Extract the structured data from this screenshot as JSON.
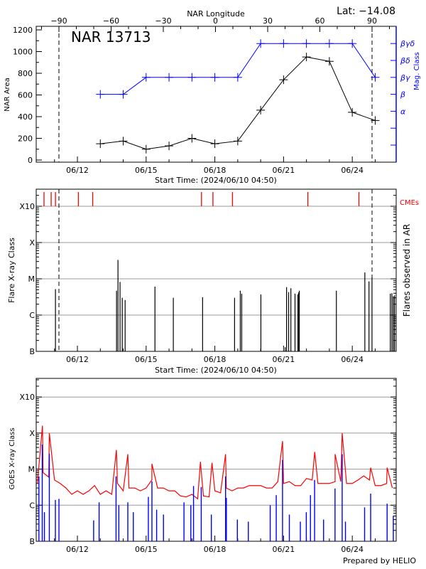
{
  "header": {
    "lat_label": "Lat: −14.08",
    "region_label": "NAR 13713"
  },
  "footer": {
    "credit": "Prepared by HELIO"
  },
  "colors": {
    "area": "#000000",
    "mag_class": "#0000ff",
    "cme": "#ff0000",
    "flare": "#000000",
    "goes_long": "#ff0000",
    "goes_short": "#0000ff",
    "grid": "#999999"
  },
  "chart_data": [
    {
      "type": "line",
      "xlabel": "Start Time: (2024/06/10 04:50)",
      "top_xlabel": "NAR Longitude",
      "ylabel": "NAR Area",
      "y2label": "Mag. Class",
      "xlim": [
        "2024-06-10T04:50",
        "2024-06-25T22:00"
      ],
      "ylim": [
        0,
        1200
      ],
      "yticks": [
        0,
        200,
        400,
        600,
        800,
        1000,
        1200
      ],
      "xtick_labels": [
        "06/12",
        "06/15",
        "06/18",
        "06/21",
        "06/24"
      ],
      "longitude_ticks": [
        -90,
        -60,
        -30,
        0,
        30,
        60,
        90
      ],
      "limb_longitudes": [
        -90,
        90
      ],
      "mag_class_axis": [
        "",
        "",
        "α",
        "β",
        "βγ",
        "βδ",
        "βγδ"
      ],
      "dates": [
        "2024-06-13",
        "2024-06-14",
        "2024-06-15",
        "2024-06-16",
        "2024-06-17",
        "2024-06-18",
        "2024-06-19",
        "2024-06-20",
        "2024-06-21",
        "2024-06-22",
        "2024-06-23",
        "2024-06-24",
        "2024-06-25"
      ],
      "area": [
        150,
        175,
        100,
        130,
        200,
        150,
        175,
        460,
        740,
        950,
        910,
        440,
        365
      ],
      "mag_class": [
        "β",
        "β",
        "βγ",
        "βγ",
        "βγ",
        "βγ",
        "βγ",
        "βγδ",
        "βγδ",
        "βγδ",
        "βγδ",
        "βγδ",
        "βγ"
      ]
    },
    {
      "type": "bar",
      "xlabel": "Start Time: (2024/06/10 04:50)",
      "ylabel": "Flare X-ray Class",
      "y2label": "Flares observed in AR",
      "cme_label": "CMEs",
      "yscale": "log",
      "yticks": [
        "B",
        "C",
        "M",
        "X",
        "X10"
      ],
      "grid": true,
      "cmes": [
        "2024-06-10T13:00",
        "2024-06-10T20:30",
        "2024-06-11T01:00",
        "2024-06-12T01:00",
        "2024-06-12T16:00",
        "2024-06-17T10:00",
        "2024-06-17T22:00",
        "2024-06-18T18:30",
        "2024-06-22T01:30",
        "2024-06-24T07:00"
      ],
      "flares": [
        [
          "2024-06-11T01:00",
          "C5.2"
        ],
        [
          "2024-06-13T17:00",
          "C4.7"
        ],
        [
          "2024-06-13T18:30",
          "M3.3"
        ],
        [
          "2024-06-13T20:40",
          "C8.2"
        ],
        [
          "2024-06-13T23:00",
          "C3.0"
        ],
        [
          "2024-06-14T02:00",
          "C2.6"
        ],
        [
          "2024-06-15T09:15",
          "C6.1"
        ],
        [
          "2024-06-16T04:30",
          "C3.0"
        ],
        [
          "2024-06-17T11:10",
          "C3.1"
        ],
        [
          "2024-06-18T20:40",
          "C3.0"
        ],
        [
          "2024-06-19T02:40",
          "C4.7"
        ],
        [
          "2024-06-19T04:10",
          "C3.9"
        ],
        [
          "2024-06-20T00:15",
          "C3.7"
        ],
        [
          "2024-06-21T01:40",
          "B1.3"
        ],
        [
          "2024-06-21T03:10",
          "C5.9"
        ],
        [
          "2024-06-21T05:20",
          "C4.3"
        ],
        [
          "2024-06-21T07:40",
          "C5.5"
        ],
        [
          "2024-06-21T12:00",
          "C3.9"
        ],
        [
          "2024-06-21T15:00",
          "C3.7"
        ],
        [
          "2024-06-21T15:50",
          "C4.2"
        ],
        [
          "2024-06-21T16:30",
          "C4.7"
        ],
        [
          "2024-06-23T07:20",
          "C4.7"
        ],
        [
          "2024-06-24T13:10",
          "M1.5"
        ],
        [
          "2024-06-24T17:30",
          "C8.5"
        ],
        [
          "2024-06-24T20:40",
          "M1.1"
        ],
        [
          "2024-06-25T15:50",
          "C3.9"
        ],
        [
          "2024-06-25T17:30",
          "C4.0"
        ],
        [
          "2024-06-25T19:00",
          "C3.3"
        ],
        [
          "2024-06-25T20:20",
          "C3.5"
        ]
      ]
    },
    {
      "type": "line",
      "ylabel": "GOES X-ray Class",
      "yscale": "log",
      "yticks": [
        "B",
        "C",
        "M",
        "X",
        "X10"
      ],
      "grid": true,
      "long_channel_start": "2024-06-10T06:00",
      "long_channel_step_hours": 6,
      "long_channel": [
        "C4",
        "C8",
        "C6",
        "C5",
        "C4",
        "C3",
        "C2",
        "C2.5",
        "C2",
        "C2.5",
        "C3.5",
        "C2",
        "C2.5",
        "C2",
        "C4",
        "C2.5",
        "C3",
        "C3",
        "C2.5",
        "C3",
        "C5",
        "C3",
        "C3",
        "C2.5",
        "C2.5",
        "C1.8",
        "C1.7",
        "C2",
        "C1.5",
        "C1.8",
        "C1.7",
        "C2.5",
        "C2.2",
        "C3",
        "C2.5",
        "C3",
        "C3",
        "C3.5",
        "C3.5",
        "C3.5",
        "C3",
        "C3",
        "C4.5",
        "C4",
        "C4.5",
        "C3.5",
        "C3.5",
        "C5.5",
        "C5",
        "C4",
        "C4",
        "C4",
        "C4.5",
        "C4.5",
        "C4",
        "C4",
        "C5",
        "C6.5",
        "C5",
        "C3.5",
        "C3.5",
        "C4",
        "C3"
      ],
      "long_channel_peaks": [
        [
          "2024-06-10T11:25",
          "X1.6"
        ],
        [
          "2024-06-10T18:35",
          "X1.0"
        ],
        [
          "2024-06-13T16:50",
          "M3.4"
        ],
        [
          "2024-06-14T04:50",
          "M2.6"
        ],
        [
          "2024-06-15T06:05",
          "M1.4"
        ],
        [
          "2024-06-17T08:55",
          "M1.6"
        ],
        [
          "2024-06-17T21:00",
          "M1.5"
        ],
        [
          "2024-06-18T11:15",
          "M2.6"
        ],
        [
          "2024-06-20T22:55",
          "M6.0"
        ],
        [
          "2024-06-22T08:40",
          "M3.0"
        ],
        [
          "2024-06-23T06:00",
          "M2.6"
        ],
        [
          "2024-06-23T13:25",
          "X1.0"
        ],
        [
          "2024-06-24T19:15",
          "M1.1"
        ],
        [
          "2024-06-25T12:30",
          "M1.1"
        ]
      ],
      "short_channel_peaks": [
        [
          "2024-06-10T07:40",
          "C6.3"
        ],
        [
          "2024-06-10T11:10",
          "M4.8"
        ],
        [
          "2024-06-10T13:25",
          "B6.4"
        ],
        [
          "2024-06-10T18:35",
          "M2.7"
        ],
        [
          "2024-06-11T00:55",
          "C1.4"
        ],
        [
          "2024-06-11T04:40",
          "C1.5"
        ],
        [
          "2024-06-12T17:00",
          "B3.8"
        ],
        [
          "2024-06-12T22:45",
          "C1.2"
        ],
        [
          "2024-06-13T16:30",
          "C6.3"
        ],
        [
          "2024-06-13T19:25",
          "C1.0"
        ],
        [
          "2024-06-14T04:50",
          "C1.2"
        ],
        [
          "2024-06-14T10:35",
          "B6.4"
        ],
        [
          "2024-06-15T02:20",
          "C1.7"
        ],
        [
          "2024-06-15T06:05",
          "C4.6"
        ],
        [
          "2024-06-15T11:00",
          "B7.5"
        ],
        [
          "2024-06-15T18:10",
          "B5.5"
        ],
        [
          "2024-06-16T15:40",
          "C1.2"
        ],
        [
          "2024-06-16T22:50",
          "C1.0"
        ],
        [
          "2024-06-17T01:40",
          "C3.4"
        ],
        [
          "2024-06-17T09:45",
          "C3.2"
        ],
        [
          "2024-06-17T20:20",
          "B5.5"
        ],
        [
          "2024-06-18T11:15",
          "C6.3"
        ],
        [
          "2024-06-18T12:05",
          "C1.6"
        ],
        [
          "2024-06-18T23:35",
          "B4.0"
        ],
        [
          "2024-06-19T11:05",
          "B3.5"
        ],
        [
          "2024-06-20T10:00",
          "C1.0"
        ],
        [
          "2024-06-20T16:20",
          "C1.9"
        ],
        [
          "2024-06-20T22:55",
          "M1.8"
        ],
        [
          "2024-06-21T06:05",
          "B5.5"
        ],
        [
          "2024-06-21T17:35",
          "B3.5"
        ],
        [
          "2024-06-21T23:50",
          "B6.4"
        ],
        [
          "2024-06-22T04:10",
          "C1.9"
        ],
        [
          "2024-06-22T08:30",
          "C5.0"
        ],
        [
          "2024-06-22T17:55",
          "B4.0"
        ],
        [
          "2024-06-23T05:55",
          "C2.9"
        ],
        [
          "2024-06-23T13:25",
          "M2.6"
        ],
        [
          "2024-06-23T16:50",
          "B3.5"
        ],
        [
          "2024-06-24T12:55",
          "B8.7"
        ],
        [
          "2024-06-24T19:15",
          "C2.1"
        ],
        [
          "2024-06-25T12:30",
          "C1.1"
        ],
        [
          "2024-06-25T19:00",
          "B5.1"
        ]
      ]
    }
  ]
}
